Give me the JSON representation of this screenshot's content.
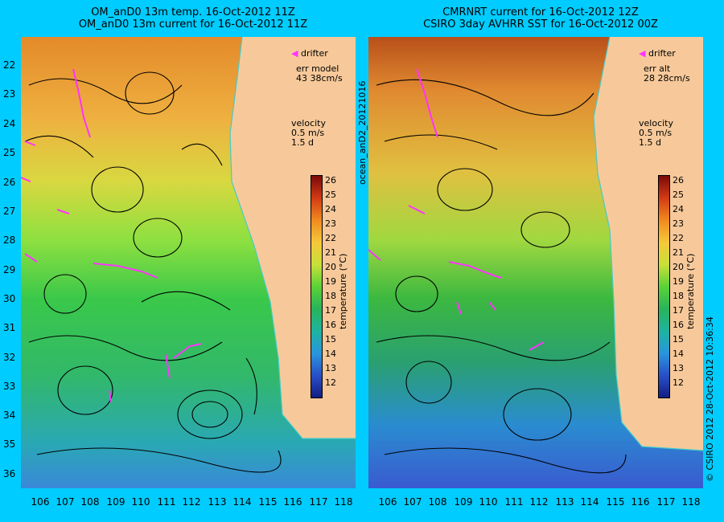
{
  "left_panel": {
    "title_line1": "OM_anD0 13m temp. 16-Oct-2012 11Z",
    "title_line2": "OM_anD0 13m current for 16-Oct-2012 11Z",
    "drifter_label": "drifter",
    "err_label": "err model",
    "err_value": "43 38cm/s",
    "velocity_label": "velocity",
    "velocity_scale": "0.5 m/s",
    "velocity_time": "1.5 d"
  },
  "right_panel": {
    "title_line1": "CMRNRT current for 16-Oct-2012 12Z",
    "title_line2": "CSIRO 3day AVHRR SST for 16-Oct-2012 00Z",
    "drifter_label": "drifter",
    "err_label": "err alt",
    "err_value": "28 28cm/s",
    "velocity_label": "velocity",
    "velocity_scale": "0.5 m/s",
    "velocity_time": "1.5 d"
  },
  "side_labels": {
    "run_id": "ocean_anD2_20121016",
    "copyright": "© CSIRO 2012  28-Oct-2012 10:36:34"
  },
  "colorbar": {
    "title": "temperature (°C)",
    "ticks": [
      "26",
      "25",
      "24",
      "23",
      "22",
      "21",
      "20",
      "19",
      "18",
      "17",
      "16",
      "15",
      "14",
      "13",
      "12"
    ]
  },
  "axes": {
    "latitudes": [
      "22",
      "23",
      "24",
      "25",
      "26",
      "27",
      "28",
      "29",
      "30",
      "31",
      "32",
      "33",
      "34",
      "35",
      "36"
    ],
    "longitudes": [
      "106",
      "107",
      "108",
      "109",
      "110",
      "111",
      "112",
      "113",
      "114",
      "115",
      "116",
      "117",
      "118"
    ]
  },
  "colors": {
    "background": "#00ccff",
    "land": "#f7c99a",
    "drifter": "#ff33ff",
    "coast_line": "#44cccc"
  }
}
